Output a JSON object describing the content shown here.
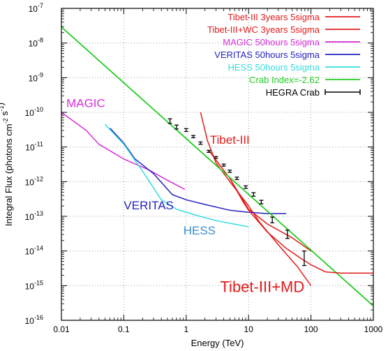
{
  "chart_data": {
    "type": "line",
    "xlabel": "Energy (TeV)",
    "ylabel": "Integral Flux (photons cm^-2 s^-1)",
    "xscale": "log",
    "yscale": "log",
    "xlim": [
      0.01,
      1000
    ],
    "ylim": [
      1e-16,
      1e-07
    ],
    "grid": true,
    "legend_position": "top-right",
    "x_ticks": [
      {
        "value": 0.01,
        "label": "0.01"
      },
      {
        "value": 0.1,
        "label": "0.1"
      },
      {
        "value": 1,
        "label": "1"
      },
      {
        "value": 10,
        "label": "10"
      },
      {
        "value": 100,
        "label": "100"
      },
      {
        "value": 1000,
        "label": "1000"
      }
    ],
    "y_ticks": [
      {
        "value": 1e-16,
        "base": "10",
        "exp": "-16"
      },
      {
        "value": 1e-15,
        "base": "10",
        "exp": "-15"
      },
      {
        "value": 1e-14,
        "base": "10",
        "exp": "-14"
      },
      {
        "value": 1e-13,
        "base": "10",
        "exp": "-13"
      },
      {
        "value": 1e-12,
        "base": "10",
        "exp": "-12"
      },
      {
        "value": 1e-11,
        "base": "10",
        "exp": "-11"
      },
      {
        "value": 1e-10,
        "base": "10",
        "exp": "-10"
      },
      {
        "value": 1e-09,
        "base": "10",
        "exp": "-9"
      },
      {
        "value": 1e-08,
        "base": "10",
        "exp": "-8"
      },
      {
        "value": 1e-07,
        "base": "10",
        "exp": "-7"
      }
    ],
    "series": [
      {
        "name": "Tibet-III 3years 5sigma",
        "color": "#e21b1b",
        "width": 1.5,
        "points": [
          [
            1.7,
            1e-10
          ],
          [
            2.2,
            1.5e-11
          ],
          [
            3,
            3.5e-12
          ],
          [
            5,
            1e-12
          ],
          [
            10,
            2e-13
          ],
          [
            15,
            6.8e-14
          ],
          [
            30,
            1.5e-14
          ],
          [
            60,
            3.6e-15
          ],
          [
            100,
            1e-15
          ]
        ]
      },
      {
        "name": "Tibet-III+WC 3years 5sigma",
        "color": "#e21b1b",
        "width": 1.5,
        "points": [
          [
            2.3,
            8e-12
          ],
          [
            5,
            1.25e-12
          ],
          [
            10,
            1.6e-13
          ],
          [
            20,
            6e-14
          ],
          [
            50,
            2.4e-14
          ],
          [
            100,
            1e-14
          ]
        ]
      },
      {
        "name": "MAGIC 50hours 5sigma",
        "color": "#d62ed6",
        "width": 1.5,
        "points": [
          [
            0.01,
            1e-10
          ],
          [
            0.025,
            3e-11
          ],
          [
            0.04,
            1.2e-11
          ],
          [
            0.1,
            4.5e-12
          ],
          [
            0.25,
            2.2e-12
          ],
          [
            0.5,
            1.1e-12
          ],
          [
            0.95,
            6e-13
          ]
        ]
      },
      {
        "name": "VERITAS 50hours 5sigma",
        "color": "#2222c0",
        "width": 1.5,
        "points": [
          [
            0.06,
            3.5e-11
          ],
          [
            0.1,
            1.3e-11
          ],
          [
            0.15,
            4.6e-12
          ],
          [
            0.3,
            1.7e-12
          ],
          [
            0.6,
            4.2e-13
          ],
          [
            1,
            3e-13
          ],
          [
            2,
            2.2e-13
          ],
          [
            5,
            1.5e-13
          ],
          [
            10,
            1.3e-13
          ],
          [
            20,
            1.2e-13
          ],
          [
            40,
            1.2e-13
          ]
        ]
      },
      {
        "name": "HESS 50hours 5sigma",
        "color": "#33dddd",
        "width": 1.5,
        "points": [
          [
            0.05,
            4.5e-11
          ],
          [
            0.1,
            1.2e-11
          ],
          [
            0.2,
            2e-12
          ],
          [
            0.4,
            3e-13
          ],
          [
            0.7,
            1.6e-13
          ],
          [
            1.5,
            1.05e-13
          ],
          [
            3,
            7.5e-14
          ],
          [
            10,
            5e-14
          ]
        ]
      },
      {
        "name": "Crab Index=-2.62",
        "color": "#22cc22",
        "width": 1.8,
        "points": [
          [
            0.01,
            2.9e-08
          ],
          [
            1000,
            2.6e-16
          ]
        ]
      },
      {
        "name": "Tibet-III+MD",
        "color": "#e21b1b",
        "width": 1.5,
        "points": [
          [
            5,
            1.25e-12
          ],
          [
            8,
            2.8e-13
          ],
          [
            10,
            1.5e-13
          ],
          [
            20,
            3.5e-14
          ],
          [
            40,
            1.2e-14
          ],
          [
            70,
            6e-15
          ],
          [
            100,
            4e-15
          ],
          [
            170,
            2.5e-15
          ],
          [
            300,
            2.3e-15
          ],
          [
            1000,
            2.3e-15
          ]
        ]
      }
    ],
    "hegra_crab": {
      "name": "HEGRA Crab",
      "color": "#000000",
      "points": [
        {
          "x": 0.55,
          "y": 5.6e-11,
          "lo": 4.8e-11,
          "hi": 6.5e-11
        },
        {
          "x": 0.7,
          "y": 3.8e-11,
          "lo": 3.3e-11,
          "hi": 4.3e-11
        },
        {
          "x": 1.0,
          "y": 3.1e-11,
          "lo": 2.8e-11,
          "hi": 3.4e-11
        },
        {
          "x": 1.3,
          "y": 2e-11,
          "lo": 1.85e-11,
          "hi": 2.15e-11
        },
        {
          "x": 1.7,
          "y": 1.3e-11,
          "lo": 1.2e-11,
          "hi": 1.4e-11
        },
        {
          "x": 2.3,
          "y": 7.5e-12,
          "lo": 7e-12,
          "hi": 8e-12
        },
        {
          "x": 3.0,
          "y": 5e-12,
          "lo": 4.7e-12,
          "hi": 5.3e-12
        },
        {
          "x": 4.0,
          "y": 3e-12,
          "lo": 2.8e-12,
          "hi": 3.2e-12
        },
        {
          "x": 5.0,
          "y": 2e-12,
          "lo": 1.85e-12,
          "hi": 2.15e-12
        },
        {
          "x": 6.5,
          "y": 1.25e-12,
          "lo": 1.15e-12,
          "hi": 1.35e-12
        },
        {
          "x": 9.0,
          "y": 7e-13,
          "lo": 6.4e-13,
          "hi": 7.6e-13
        },
        {
          "x": 12,
          "y": 4.3e-13,
          "lo": 3.8e-13,
          "hi": 4.8e-13
        },
        {
          "x": 16,
          "y": 2.6e-13,
          "lo": 2.3e-13,
          "hi": 2.9e-13
        },
        {
          "x": 24,
          "y": 8e-14,
          "lo": 6.5e-14,
          "hi": 9.5e-14
        },
        {
          "x": 42,
          "y": 2.9e-14,
          "lo": 2.3e-14,
          "hi": 4e-14
        },
        {
          "x": 78,
          "y": 5.8e-15,
          "lo": 3.8e-15,
          "hi": 1e-14
        }
      ]
    },
    "annotations": [
      {
        "text": "MAGIC",
        "x": 0.012,
        "y": 1.4e-10,
        "color": "#d62ed6",
        "size": "medium"
      },
      {
        "text": "Tibet-III",
        "x": 2.4,
        "y": 1.25e-11,
        "color": "#e21b1b",
        "size": "medium"
      },
      {
        "text": "VERITAS",
        "x": 0.1,
        "y": 1.6e-13,
        "color": "#2222c0",
        "size": "medium"
      },
      {
        "text": "HESS",
        "x": 0.9,
        "y": 3e-14,
        "color": "#3a8fd0",
        "size": "medium"
      },
      {
        "text": "Tibet-III+MD",
        "x": 3.5,
        "y": 6.5e-16,
        "color": "#e21b1b",
        "size": "large"
      }
    ]
  }
}
